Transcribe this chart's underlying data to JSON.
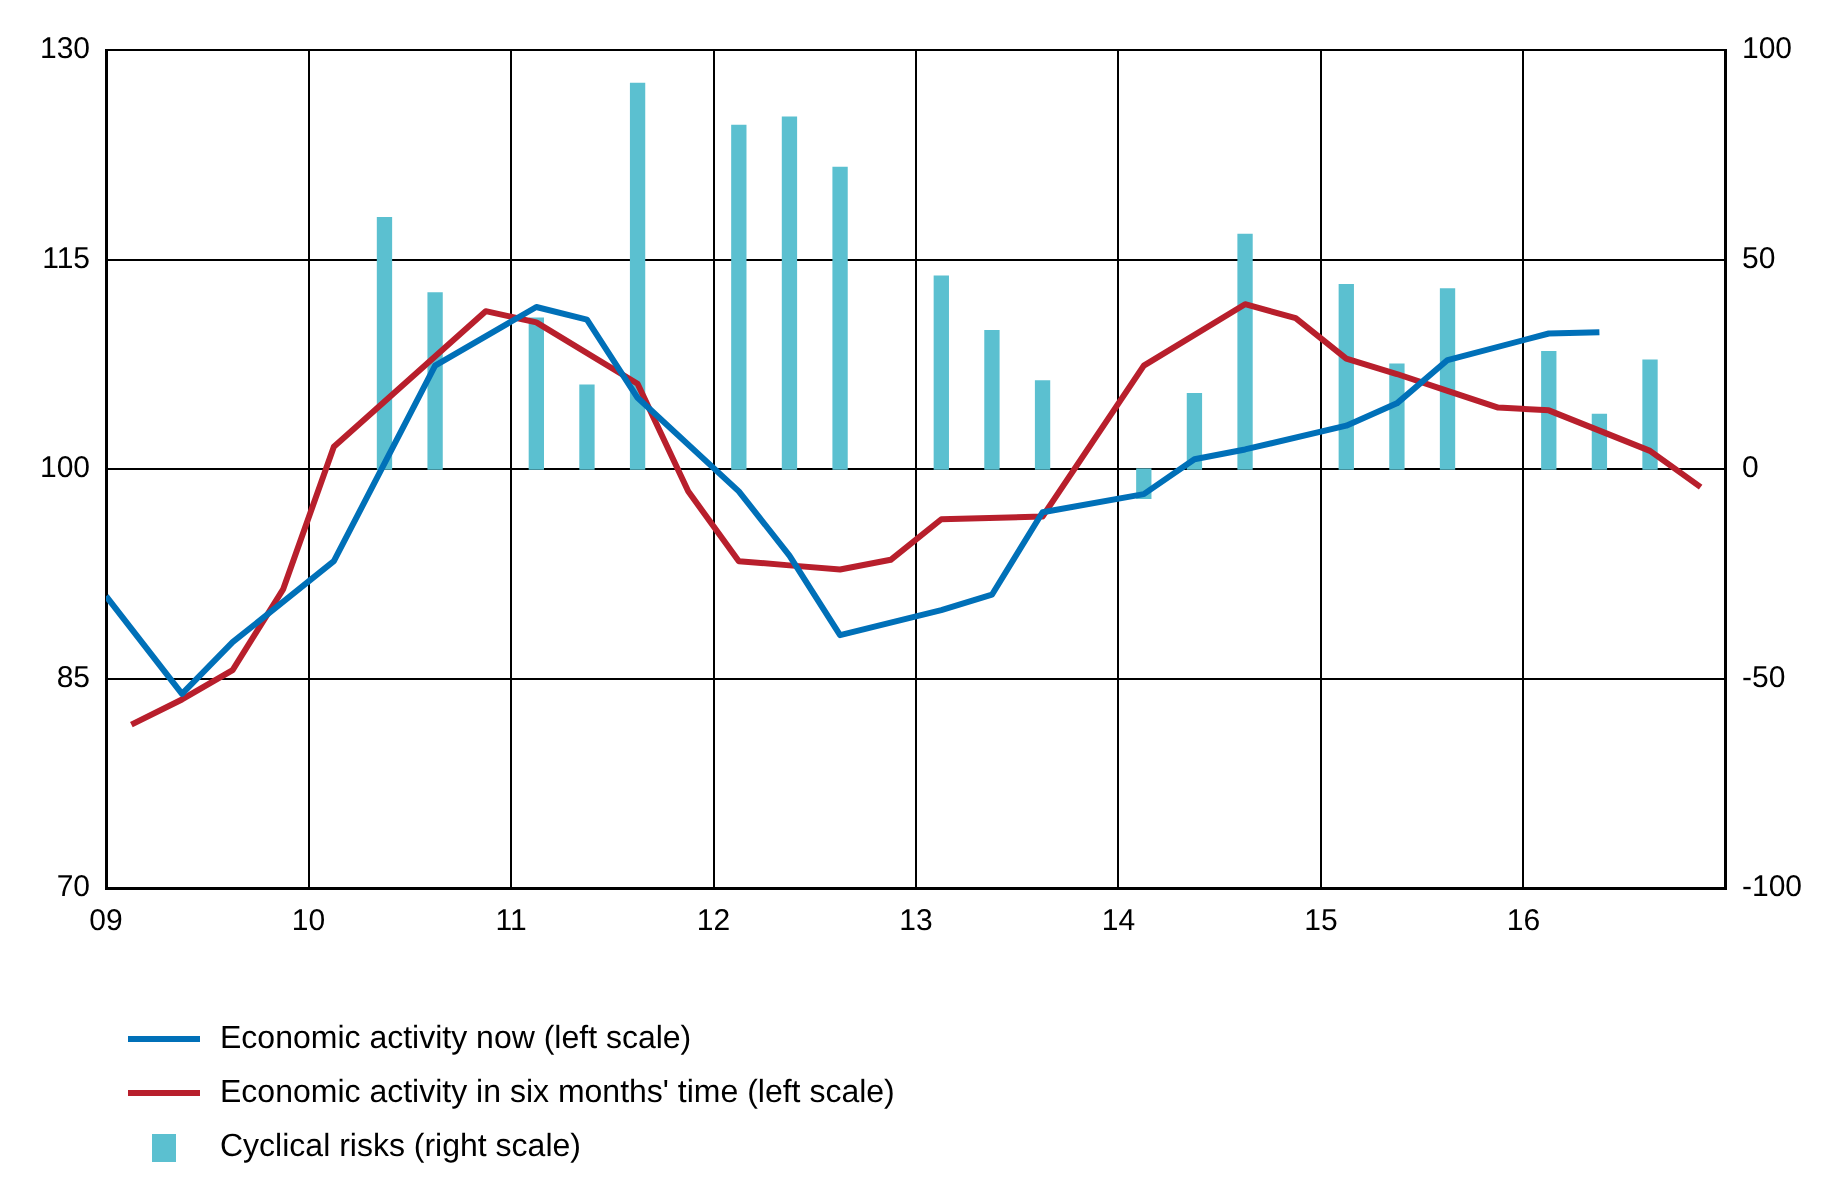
{
  "chart_data": {
    "type": "line",
    "xlim": [
      2009,
      2017
    ],
    "xticks": [
      {
        "value": 2009,
        "label": "09"
      },
      {
        "value": 2010,
        "label": "10"
      },
      {
        "value": 2011,
        "label": "11"
      },
      {
        "value": 2012,
        "label": "12"
      },
      {
        "value": 2013,
        "label": "13"
      },
      {
        "value": 2014,
        "label": "14"
      },
      {
        "value": 2015,
        "label": "15"
      },
      {
        "value": 2016,
        "label": "16"
      }
    ],
    "ylim": [
      70,
      130
    ],
    "yticks": [
      70,
      85,
      100,
      115,
      130
    ],
    "y2lim": [
      -100,
      100
    ],
    "y2ticks": [
      -100,
      -50,
      0,
      50,
      100
    ],
    "grid": true,
    "legend": "bottom",
    "series": [
      {
        "name": "Economic activity now (left scale)",
        "color": "#0070b8",
        "x": [
          2009,
          2009.375,
          2009.625,
          2010.125,
          2010.625,
          2011.125,
          2011.375,
          2011.625,
          2012.125,
          2012.375,
          2012.625,
          2013.125,
          2013.375,
          2013.625,
          2014.125,
          2014.375,
          2014.625,
          2015.125,
          2015.375,
          2015.625,
          2016.125,
          2016.375
        ],
        "values": [
          90.9,
          83.9,
          87.6,
          93.4,
          107.4,
          111.6,
          110.7,
          105.1,
          98.4,
          93.8,
          88.1,
          89.9,
          91.0,
          96.9,
          98.2,
          100.7,
          101.4,
          103.1,
          104.7,
          107.8,
          109.7,
          109.8
        ]
      },
      {
        "name": "Economic activity in six months' time (left scale)",
        "color": "#b81f2c",
        "x": [
          2009.125,
          2009.375,
          2009.625,
          2009.875,
          2010.125,
          2010.875,
          2011.125,
          2011.625,
          2011.875,
          2012.125,
          2012.375,
          2012.625,
          2012.875,
          2013.125,
          2013.625,
          2014.125,
          2014.625,
          2014.875,
          2015.125,
          2015.375,
          2015.625,
          2015.875,
          2016.125,
          2016.625,
          2016.875
        ],
        "values": [
          81.7,
          83.5,
          85.6,
          91.4,
          101.6,
          111.3,
          110.5,
          106.1,
          98.4,
          93.4,
          93.1,
          92.8,
          93.5,
          96.4,
          96.6,
          107.4,
          111.8,
          110.8,
          107.9,
          106.8,
          105.6,
          104.4,
          104.2,
          101.3,
          98.7
        ]
      },
      {
        "name": "Cyclical risks (right scale)",
        "type": "bar",
        "axis": "y2",
        "color": "#5bc0d0",
        "x": [
          2010.375,
          2010.625,
          2011.125,
          2011.375,
          2011.625,
          2012.125,
          2012.375,
          2012.625,
          2013.125,
          2013.375,
          2013.625,
          2014.125,
          2014.375,
          2014.625,
          2015.125,
          2015.375,
          2015.625,
          2016.125,
          2016.375,
          2016.625
        ],
        "values": [
          60,
          42,
          36,
          20,
          92,
          82,
          84,
          72,
          46,
          33,
          21,
          -7,
          18,
          56,
          44,
          25,
          43,
          28,
          13,
          26
        ]
      }
    ]
  }
}
